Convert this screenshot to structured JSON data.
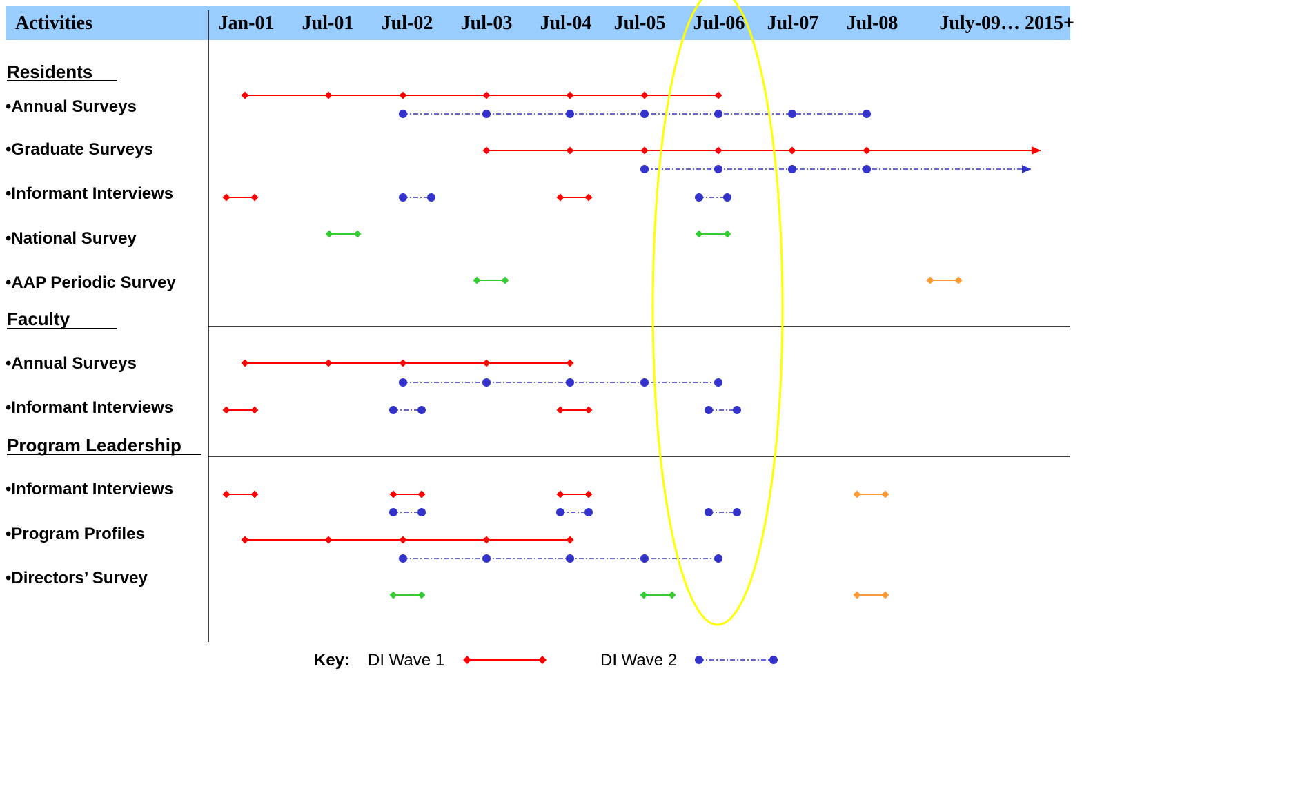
{
  "header": {
    "activities_label": "Activities",
    "columns": [
      "Jan-01",
      "Jul-01",
      "Jul-02",
      "Jul-03",
      "Jul-04",
      "Jul-05",
      "Jul-06",
      "Jul-07",
      "Jul-08",
      "July-09… 2015+"
    ]
  },
  "sections": [
    {
      "key": "residents",
      "label": "Residents"
    },
    {
      "key": "faculty",
      "label": "Faculty"
    },
    {
      "key": "leadership",
      "label": "Program Leadership"
    }
  ],
  "activities": [
    {
      "key": "res-annual",
      "label": "•Annual Surveys"
    },
    {
      "key": "res-graduate",
      "label": "•Graduate Surveys"
    },
    {
      "key": "res-informant",
      "label": "•Informant Interviews"
    },
    {
      "key": "res-national",
      "label": "•National Survey"
    },
    {
      "key": "res-aap",
      "label": "•AAP Periodic Survey"
    },
    {
      "key": "fac-annual",
      "label": "•Annual Surveys"
    },
    {
      "key": "fac-informant",
      "label": "•Informant Interviews"
    },
    {
      "key": "pl-informant",
      "label": "•Informant Interviews"
    },
    {
      "key": "pl-profiles",
      "label": "•Program Profiles"
    },
    {
      "key": "pl-directors",
      "label": "•Directors’ Survey"
    }
  ],
  "key": {
    "title": "Key:",
    "wave1": "DI Wave 1",
    "wave2": "DI Wave 2"
  },
  "colors": {
    "header_bg": "#99ccff",
    "wave1": "#ff0000",
    "wave2": "#3333cc",
    "green": "#33cc33",
    "orange": "#ff9933",
    "highlight": "#ffff00"
  },
  "chart_data": {
    "type": "timeline",
    "time_axis": [
      "Jan-01",
      "Jul-01",
      "Jul-02",
      "Jul-03",
      "Jul-04",
      "Jul-05",
      "Jul-06",
      "Jul-07",
      "Jul-08",
      "July-09… 2015+"
    ],
    "highlighted_period": "Jul-06",
    "series": [
      {
        "activity": "res-annual",
        "style": "wave1",
        "points": [
          "Jan-01",
          "Jul-01",
          "Jul-02",
          "Jul-03",
          "Jul-04",
          "Jul-05",
          "Jul-06"
        ]
      },
      {
        "activity": "res-annual",
        "style": "wave2",
        "points": [
          "Jul-02",
          "Jul-03",
          "Jul-04",
          "Jul-05",
          "Jul-06",
          "Jul-07",
          "Jul-08"
        ]
      },
      {
        "activity": "res-graduate",
        "style": "wave1",
        "points": [
          "Jul-03",
          "Jul-04",
          "Jul-05",
          "Jul-06",
          "Jul-07",
          "Jul-08"
        ],
        "continues": true
      },
      {
        "activity": "res-graduate",
        "style": "wave2",
        "points": [
          "Jul-05",
          "Jul-06",
          "Jul-07",
          "Jul-08"
        ],
        "continues": true
      },
      {
        "activity": "res-informant",
        "style": "wave1",
        "points": [
          "Jan-01"
        ]
      },
      {
        "activity": "res-informant",
        "style": "wave2",
        "points": [
          "Jul-02"
        ]
      },
      {
        "activity": "res-informant",
        "style": "wave1",
        "points": [
          "Jul-04"
        ]
      },
      {
        "activity": "res-informant",
        "style": "wave2",
        "points": [
          "Jul-06"
        ]
      },
      {
        "activity": "res-national",
        "style": "green",
        "points": [
          "Jul-01"
        ]
      },
      {
        "activity": "res-national",
        "style": "green",
        "points": [
          "Jul-06"
        ]
      },
      {
        "activity": "res-aap",
        "style": "green",
        "points": [
          "Jul-03"
        ]
      },
      {
        "activity": "res-aap",
        "style": "orange",
        "points": [
          "July-09… 2015+"
        ]
      },
      {
        "activity": "fac-annual",
        "style": "wave1",
        "points": [
          "Jan-01",
          "Jul-01",
          "Jul-02",
          "Jul-03",
          "Jul-04"
        ]
      },
      {
        "activity": "fac-annual",
        "style": "wave2",
        "points": [
          "Jul-02",
          "Jul-03",
          "Jul-04",
          "Jul-05",
          "Jul-06"
        ]
      },
      {
        "activity": "fac-informant",
        "style": "wave1",
        "points": [
          "Jan-01"
        ]
      },
      {
        "activity": "fac-informant",
        "style": "wave2",
        "points": [
          "Jul-02"
        ]
      },
      {
        "activity": "fac-informant",
        "style": "wave1",
        "points": [
          "Jul-04"
        ]
      },
      {
        "activity": "fac-informant",
        "style": "wave2",
        "points": [
          "Jul-06"
        ]
      },
      {
        "activity": "pl-informant",
        "style": "wave1",
        "points": [
          "Jan-01"
        ]
      },
      {
        "activity": "pl-informant",
        "style": "wave1",
        "points": [
          "Jul-02"
        ]
      },
      {
        "activity": "pl-informant",
        "style": "wave2",
        "points": [
          "Jul-02"
        ]
      },
      {
        "activity": "pl-informant",
        "style": "wave1",
        "points": [
          "Jul-04"
        ]
      },
      {
        "activity": "pl-informant",
        "style": "wave2",
        "points": [
          "Jul-04"
        ]
      },
      {
        "activity": "pl-informant",
        "style": "wave2",
        "points": [
          "Jul-06"
        ]
      },
      {
        "activity": "pl-informant",
        "style": "orange",
        "points": [
          "Jul-08"
        ]
      },
      {
        "activity": "pl-profiles",
        "style": "wave1",
        "points": [
          "Jan-01",
          "Jul-01",
          "Jul-02",
          "Jul-03",
          "Jul-04"
        ]
      },
      {
        "activity": "pl-profiles",
        "style": "wave2",
        "points": [
          "Jul-02",
          "Jul-03",
          "Jul-04",
          "Jul-05",
          "Jul-06"
        ]
      },
      {
        "activity": "pl-directors",
        "style": "green",
        "points": [
          "Jul-02"
        ]
      },
      {
        "activity": "pl-directors",
        "style": "green",
        "points": [
          "Jul-05"
        ]
      },
      {
        "activity": "pl-directors",
        "style": "orange",
        "points": [
          "Jul-08"
        ]
      }
    ]
  }
}
